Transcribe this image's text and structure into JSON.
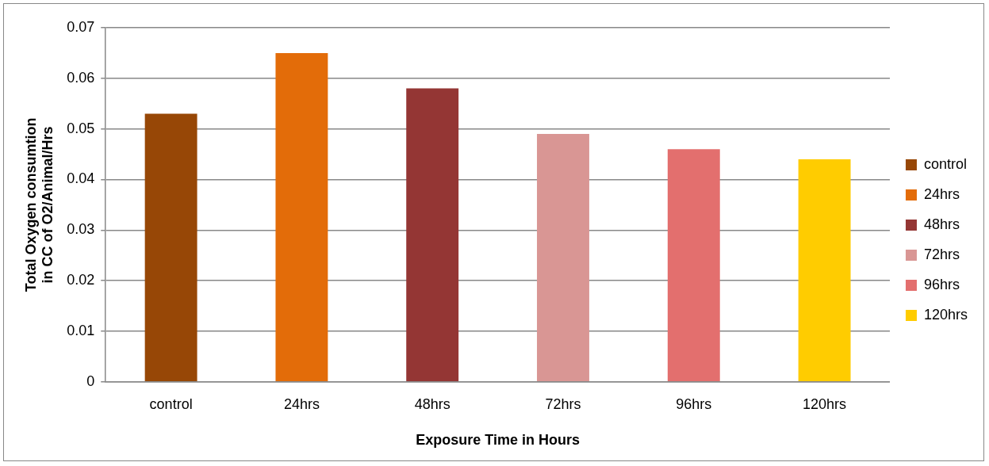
{
  "chart_data": {
    "type": "bar",
    "xlabel": "Exposure Time in Hours",
    "ylabel": "Total Oxygen consumtion in CC of O2/Animal/Hrs",
    "categories": [
      "control",
      "24hrs",
      "48hrs",
      "72hrs",
      "96hrs",
      "120hrs"
    ],
    "series": [
      {
        "name": "control",
        "color": "#974706",
        "values": [
          0.053,
          null,
          null,
          null,
          null,
          null
        ]
      },
      {
        "name": "24hrs",
        "color": "#e36c09",
        "values": [
          null,
          0.065,
          null,
          null,
          null,
          null
        ]
      },
      {
        "name": "48hrs",
        "color": "#943634",
        "values": [
          null,
          null,
          0.058,
          null,
          null,
          null
        ]
      },
      {
        "name": "72hrs",
        "color": "#d99694",
        "values": [
          null,
          null,
          null,
          0.049,
          null,
          null
        ]
      },
      {
        "name": "96hrs",
        "color": "#e36f6e",
        "values": [
          null,
          null,
          null,
          null,
          0.046,
          null
        ]
      },
      {
        "name": "120hrs",
        "color": "#ffcc00",
        "values": [
          null,
          null,
          null,
          null,
          null,
          0.044
        ]
      }
    ],
    "ylim": [
      0,
      0.07
    ],
    "yticks": [
      0,
      0.01,
      0.02,
      0.03,
      0.04,
      0.05,
      0.06,
      0.07
    ],
    "grid": "y",
    "legend": "right"
  }
}
